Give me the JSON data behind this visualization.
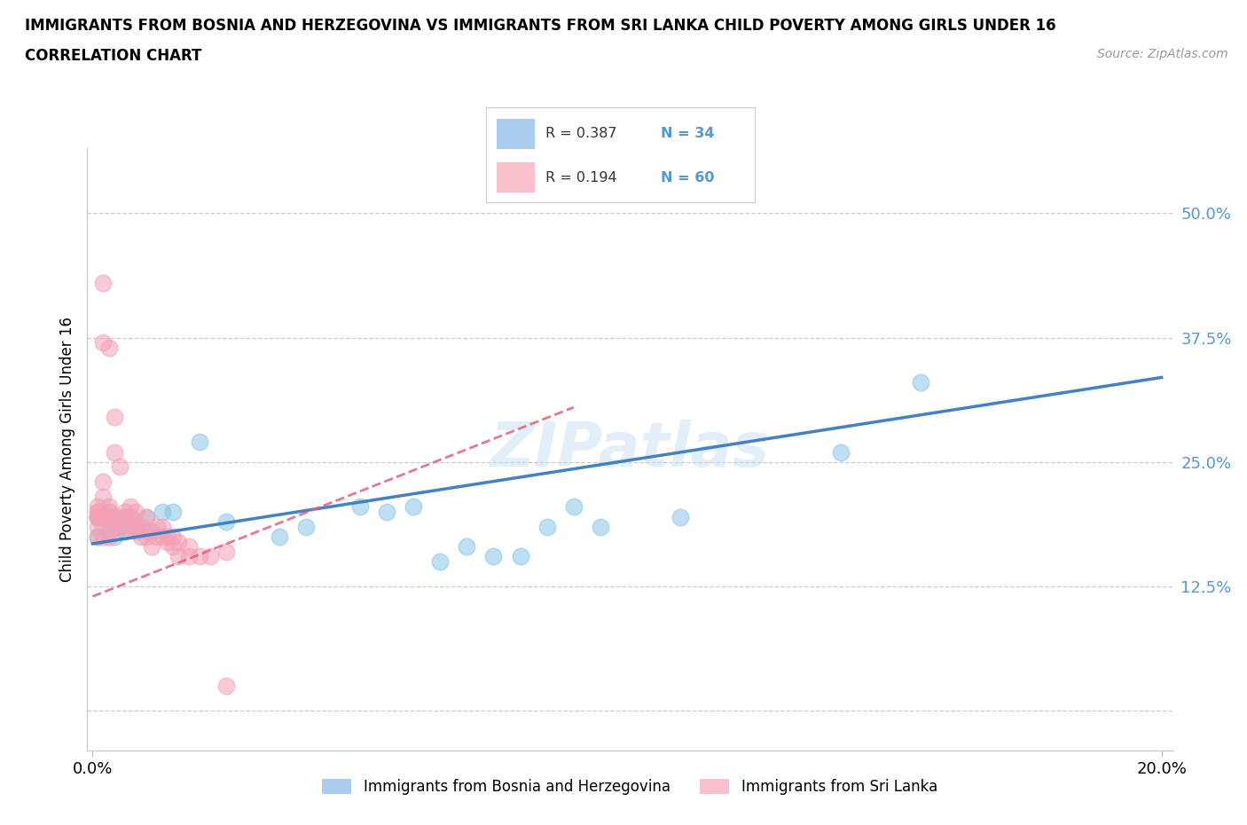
{
  "title_line1": "IMMIGRANTS FROM BOSNIA AND HERZEGOVINA VS IMMIGRANTS FROM SRI LANKA CHILD POVERTY AMONG GIRLS UNDER 16",
  "title_line2": "CORRELATION CHART",
  "source_text": "Source: ZipAtlas.com",
  "ylabel": "Child Poverty Among Girls Under 16",
  "xlim": [
    -0.001,
    0.202
  ],
  "ylim": [
    -0.04,
    0.565
  ],
  "ytick_positions": [
    0.0,
    0.125,
    0.25,
    0.375,
    0.5
  ],
  "ytick_labels": [
    "",
    "12.5%",
    "25.0%",
    "37.5%",
    "50.0%"
  ],
  "xtick_positions": [
    0.0,
    0.2
  ],
  "xtick_labels": [
    "0.0%",
    "20.0%"
  ],
  "bosnia_color": "#89c4e8",
  "srilanka_color": "#f4a0b5",
  "bosnia_line_color": "#3a7abf",
  "srilanka_line_color": "#e06080",
  "tick_color": "#5599cc",
  "legend_color_bosnia": "#aaccee",
  "legend_color_srilanka": "#f9c0cc",
  "R_bosnia": 0.387,
  "N_bosnia": 34,
  "R_srilanka": 0.194,
  "N_srilanka": 60,
  "watermark": "ZIPatlas",
  "bosnia_points": [
    [
      0.001,
      0.195
    ],
    [
      0.001,
      0.175
    ],
    [
      0.002,
      0.195
    ],
    [
      0.002,
      0.185
    ],
    [
      0.003,
      0.195
    ],
    [
      0.003,
      0.2
    ],
    [
      0.004,
      0.185
    ],
    [
      0.004,
      0.175
    ],
    [
      0.005,
      0.19
    ],
    [
      0.005,
      0.185
    ],
    [
      0.006,
      0.18
    ],
    [
      0.006,
      0.195
    ],
    [
      0.007,
      0.195
    ],
    [
      0.008,
      0.185
    ],
    [
      0.01,
      0.195
    ],
    [
      0.013,
      0.2
    ],
    [
      0.015,
      0.2
    ],
    [
      0.02,
      0.27
    ],
    [
      0.025,
      0.19
    ],
    [
      0.035,
      0.175
    ],
    [
      0.04,
      0.185
    ],
    [
      0.05,
      0.205
    ],
    [
      0.055,
      0.2
    ],
    [
      0.06,
      0.205
    ],
    [
      0.065,
      0.15
    ],
    [
      0.07,
      0.165
    ],
    [
      0.075,
      0.155
    ],
    [
      0.08,
      0.155
    ],
    [
      0.085,
      0.185
    ],
    [
      0.09,
      0.205
    ],
    [
      0.095,
      0.185
    ],
    [
      0.11,
      0.195
    ],
    [
      0.14,
      0.26
    ],
    [
      0.155,
      0.33
    ]
  ],
  "srilanka_points": [
    [
      0.001,
      0.195
    ],
    [
      0.001,
      0.2
    ],
    [
      0.001,
      0.205
    ],
    [
      0.001,
      0.195
    ],
    [
      0.001,
      0.2
    ],
    [
      0.001,
      0.195
    ],
    [
      0.001,
      0.175
    ],
    [
      0.001,
      0.185
    ],
    [
      0.002,
      0.23
    ],
    [
      0.002,
      0.215
    ],
    [
      0.002,
      0.195
    ],
    [
      0.002,
      0.195
    ],
    [
      0.002,
      0.37
    ],
    [
      0.002,
      0.43
    ],
    [
      0.002,
      0.175
    ],
    [
      0.003,
      0.2
    ],
    [
      0.003,
      0.205
    ],
    [
      0.003,
      0.195
    ],
    [
      0.003,
      0.365
    ],
    [
      0.003,
      0.175
    ],
    [
      0.003,
      0.18
    ],
    [
      0.004,
      0.195
    ],
    [
      0.004,
      0.185
    ],
    [
      0.004,
      0.26
    ],
    [
      0.004,
      0.295
    ],
    [
      0.005,
      0.195
    ],
    [
      0.005,
      0.185
    ],
    [
      0.005,
      0.245
    ],
    [
      0.006,
      0.185
    ],
    [
      0.006,
      0.195
    ],
    [
      0.006,
      0.2
    ],
    [
      0.007,
      0.195
    ],
    [
      0.007,
      0.19
    ],
    [
      0.007,
      0.205
    ],
    [
      0.008,
      0.18
    ],
    [
      0.008,
      0.185
    ],
    [
      0.008,
      0.2
    ],
    [
      0.009,
      0.175
    ],
    [
      0.009,
      0.185
    ],
    [
      0.01,
      0.175
    ],
    [
      0.01,
      0.18
    ],
    [
      0.01,
      0.195
    ],
    [
      0.011,
      0.165
    ],
    [
      0.011,
      0.18
    ],
    [
      0.012,
      0.175
    ],
    [
      0.012,
      0.185
    ],
    [
      0.013,
      0.175
    ],
    [
      0.013,
      0.185
    ],
    [
      0.014,
      0.175
    ],
    [
      0.014,
      0.17
    ],
    [
      0.015,
      0.175
    ],
    [
      0.015,
      0.165
    ],
    [
      0.016,
      0.17
    ],
    [
      0.016,
      0.155
    ],
    [
      0.018,
      0.165
    ],
    [
      0.018,
      0.155
    ],
    [
      0.02,
      0.155
    ],
    [
      0.022,
      0.155
    ],
    [
      0.025,
      0.16
    ],
    [
      0.025,
      0.025
    ]
  ],
  "bosnia_line_x": [
    0.0,
    0.2
  ],
  "srilanka_line_x": [
    0.0,
    0.09
  ]
}
